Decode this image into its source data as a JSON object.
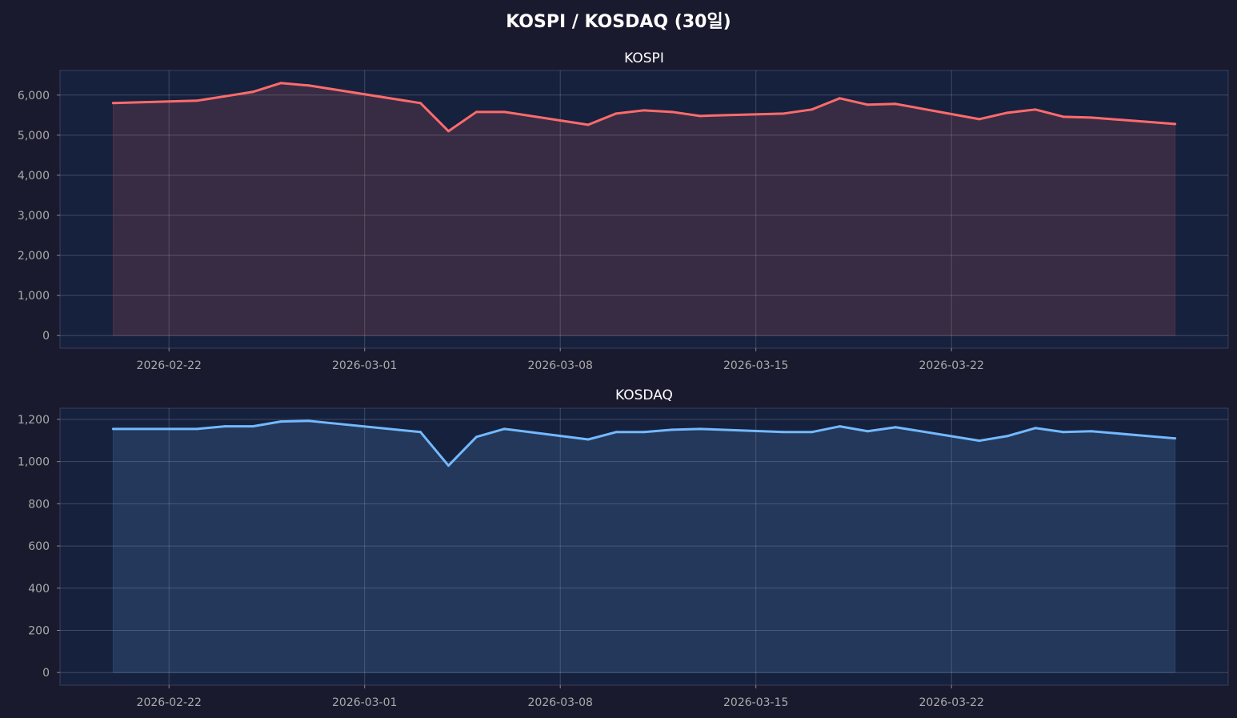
{
  "chart_data": {
    "type": "area",
    "title": "KOSPI / KOSDAQ (30일)",
    "background": "#1a1a2e",
    "axes_background": "#16213e",
    "grid": true,
    "dates": [
      "2026-02-20",
      "2026-02-23",
      "2026-02-24",
      "2026-02-25",
      "2026-02-26",
      "2026-02-27",
      "2026-03-03",
      "2026-03-04",
      "2026-03-05",
      "2026-03-06",
      "2026-03-09",
      "2026-03-10",
      "2026-03-11",
      "2026-03-12",
      "2026-03-13",
      "2026-03-16",
      "2026-03-17",
      "2026-03-18",
      "2026-03-19",
      "2026-03-20",
      "2026-03-23",
      "2026-03-24",
      "2026-03-25",
      "2026-03-26",
      "2026-03-27",
      "2026-03-30"
    ],
    "xticks": [
      "2026-02-22",
      "2026-03-01",
      "2026-03-08",
      "2026-03-15",
      "2026-03-22"
    ],
    "panels": [
      {
        "title": "KOSPI",
        "color": "#ff6b6b",
        "fill": "#3a2c45",
        "ylim": [
          -315,
          6615
        ],
        "yticks": [
          0,
          1000,
          2000,
          3000,
          4000,
          5000,
          6000
        ],
        "ytick_labels": [
          "0",
          "1,000",
          "2,000",
          "3,000",
          "4,000",
          "5,000",
          "6,000"
        ],
        "values": [
          5800,
          5860,
          5970,
          6080,
          6300,
          6240,
          5800,
          5100,
          5580,
          5580,
          5260,
          5540,
          5620,
          5580,
          5480,
          5540,
          5640,
          5920,
          5760,
          5780,
          5400,
          5560,
          5640,
          5460,
          5440,
          5280
        ]
      },
      {
        "title": "KOSDAQ",
        "color": "#74b9ff",
        "fill": "#22375a",
        "ylim": [
          -60,
          1253
        ],
        "yticks": [
          0,
          200,
          400,
          600,
          800,
          1000,
          1200
        ],
        "ytick_labels": [
          "0",
          "200",
          "400",
          "600",
          "800",
          "1,000",
          "1,200"
        ],
        "values": [
          1155,
          1155,
          1167,
          1167,
          1190,
          1193,
          1140,
          981,
          1117,
          1155,
          1105,
          1140,
          1140,
          1151,
          1155,
          1140,
          1140,
          1167,
          1144,
          1163,
          1099,
          1121,
          1159,
          1140,
          1144,
          1110
        ]
      }
    ]
  }
}
